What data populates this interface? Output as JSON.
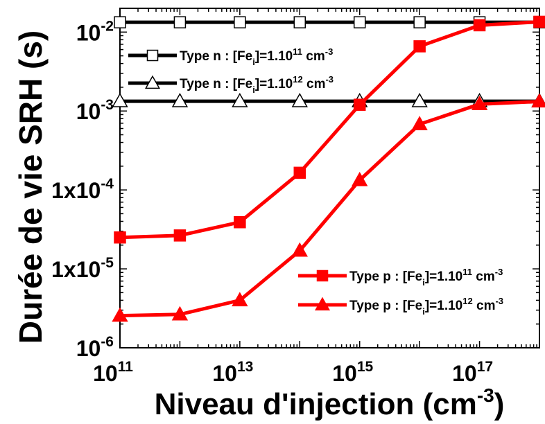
{
  "chart_data": {
    "type": "line",
    "xlabel": "Niveau d'injection (cm",
    "xlabel_sup": "-3",
    "xlabel_end": ")",
    "ylabel": "Durée de vie SRH (s)",
    "x_scale": "log",
    "y_scale": "log",
    "xlim": [
      100000000000.0,
      1e+18
    ],
    "ylim": [
      1e-06,
      0.02
    ],
    "x_ticks": [
      {
        "base": "10",
        "exp": "11",
        "value": 100000000000.0
      },
      {
        "base": "10",
        "exp": "13",
        "value": 10000000000000.0
      },
      {
        "base": "10",
        "exp": "15",
        "value": 1000000000000000.0
      },
      {
        "base": "10",
        "exp": "17",
        "value": 1e+17
      }
    ],
    "y_ticks": [
      {
        "base": "10",
        "exp": "-6",
        "value": 1e-06
      },
      {
        "base": "1x10",
        "exp": "-5",
        "value": 1e-05
      },
      {
        "base": "1x10",
        "exp": "-4",
        "value": 0.0001
      },
      {
        "base": "10",
        "exp": "-3",
        "value": 0.001
      },
      {
        "base": "10",
        "exp": "-2",
        "value": 0.01
      }
    ],
    "x": [
      100000000000.0,
      1000000000000.0,
      10000000000000.0,
      100000000000000.0,
      1000000000000000.0,
      1e+16,
      1e+17,
      1e+18
    ],
    "series": [
      {
        "label_pre": "Type n : [Fe",
        "label_sub": "i",
        "label_mid": "]=1.10",
        "label_sup": "11",
        "label_unit": " cm",
        "label_unit_sup": "-3",
        "marker": "square-open",
        "color": "#000000",
        "values": [
          0.0133,
          0.0133,
          0.0133,
          0.0133,
          0.0133,
          0.0133,
          0.0133,
          0.0133
        ]
      },
      {
        "label_pre": "Type n : [Fe",
        "label_sub": "i",
        "label_mid": "]=1.10",
        "label_sup": "12",
        "label_unit": " cm",
        "label_unit_sup": "-3",
        "marker": "triangle-open",
        "color": "#000000",
        "values": [
          0.00133,
          0.00133,
          0.00133,
          0.00133,
          0.00133,
          0.00133,
          0.00133,
          0.00133
        ]
      },
      {
        "label_pre": "Type p : [Fe",
        "label_sub": "i",
        "label_mid": "]=1.10",
        "label_sup": "11",
        "label_unit": " cm",
        "label_unit_sup": "-3",
        "marker": "square-filled",
        "color": "#ff0000",
        "values": [
          2.5e-05,
          2.65e-05,
          3.9e-05,
          0.000165,
          0.0012,
          0.0066,
          0.0122,
          0.0135
        ]
      },
      {
        "label_pre": "Type p : [Fe",
        "label_sub": "i",
        "label_mid": "]=1.10",
        "label_sup": "12",
        "label_unit": " cm",
        "label_unit_sup": "-3",
        "marker": "triangle-filled",
        "color": "#ff0000",
        "values": [
          2.55e-06,
          2.65e-06,
          4e-06,
          1.7e-05,
          0.000133,
          0.00068,
          0.00122,
          0.00132
        ]
      }
    ],
    "legend": [
      {
        "series": 0,
        "placement": "top-left"
      },
      {
        "series": 1,
        "placement": "top-left"
      },
      {
        "series": 2,
        "placement": "bottom-right"
      },
      {
        "series": 3,
        "placement": "bottom-right"
      }
    ],
    "grid": false
  }
}
